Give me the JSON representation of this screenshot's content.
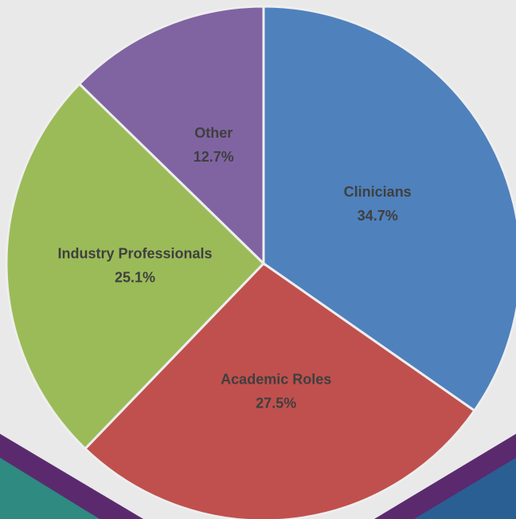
{
  "chart_data": {
    "type": "pie",
    "categories": [
      "Clinicians",
      "Academic Roles",
      "Industry Professionals",
      "Other"
    ],
    "values": [
      34.7,
      27.5,
      25.1,
      12.7
    ],
    "value_labels": [
      "34.7%",
      "27.5%",
      "25.1%",
      "12.7%"
    ],
    "colors": [
      "#4f81bd",
      "#c0504d",
      "#9bbb59",
      "#8064a2"
    ]
  }
}
